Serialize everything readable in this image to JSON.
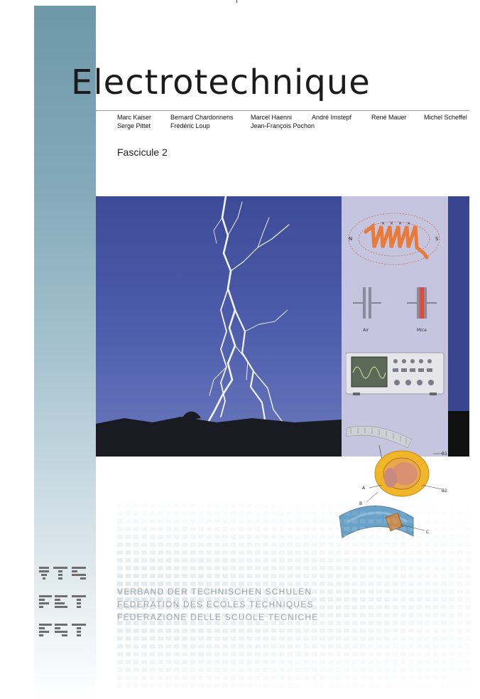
{
  "cover": {
    "title_initial": "E",
    "title_rest": "lectrotechnique",
    "authors": [
      "Marc Kaiser",
      "Bernard Chardonnens",
      "Marcel Haenni",
      "André Imstepf",
      "René Mauer",
      "Michel Scheffel",
      "Serge Pittet",
      "Frédéric Loup",
      "Jean-François Pochon"
    ],
    "fascicule": "Fascicule 2"
  },
  "illustrations": {
    "magnet_pole_n": "N",
    "magnet_pole_s": "S",
    "capacitor_air_label": "Air",
    "capacitor_mica_label": "Mica",
    "meter_labels": [
      "A",
      "B",
      "B1",
      "B2",
      "C"
    ]
  },
  "logos": [
    "VTS",
    "FET",
    "FST"
  ],
  "organization": [
    "VERBAND DER TECHNISCHEN SCHULEN",
    "FEDERATION DES ECOLES TECHNIQUES",
    "FEDERAZIONE DELLE SCUOLE TECNICHE"
  ],
  "colors": {
    "sidebar": "#6e97a8",
    "sky": "#4a5aa8",
    "panel": "#c5c5e0",
    "coil": "#e87a3a"
  }
}
